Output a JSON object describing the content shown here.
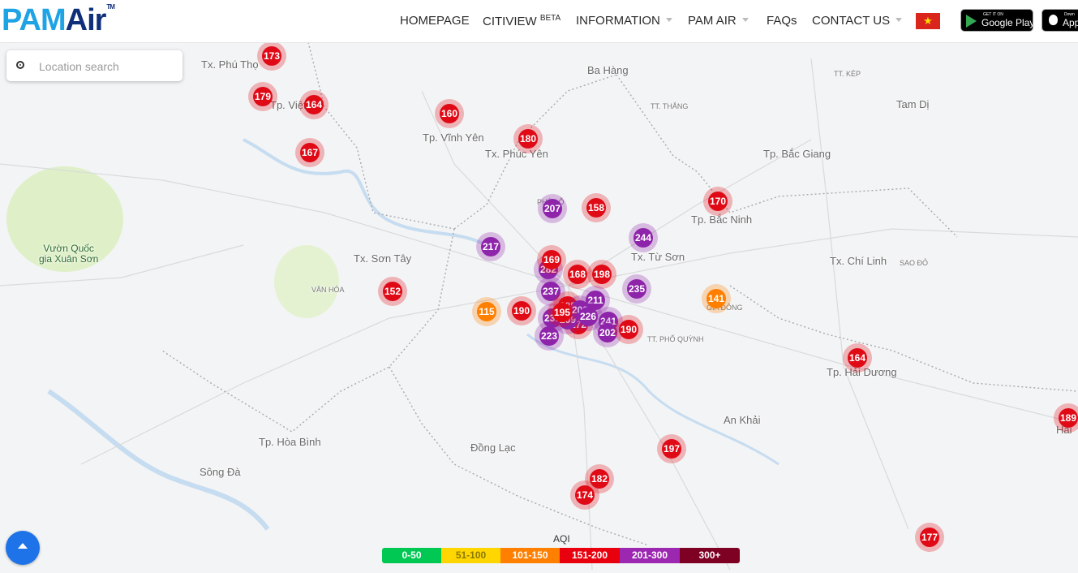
{
  "header": {
    "logo": {
      "pam": "PAM",
      "air": "Air",
      "tm": "TM"
    },
    "nav": [
      {
        "label": "HOMEPAGE",
        "sup": "",
        "dropdown": false
      },
      {
        "label": "CITIVIEW",
        "sup": "BETA",
        "dropdown": false
      },
      {
        "label": "INFORMATION",
        "sup": "",
        "dropdown": true
      },
      {
        "label": "PAM AIR",
        "sup": "",
        "dropdown": true
      },
      {
        "label": "FAQs",
        "sup": "",
        "dropdown": false
      },
      {
        "label": "CONTACT US",
        "sup": "",
        "dropdown": true
      }
    ],
    "flag": {
      "icon": "vietnam-flag-icon",
      "star": "★"
    },
    "google_play": {
      "small": "GET IT ON",
      "big": "Google Play"
    },
    "app_store": {
      "small": "Down",
      "big": "App"
    }
  },
  "search": {
    "placeholder": "Location search",
    "value": ""
  },
  "places": [
    {
      "name": "Tx. Phú Thọ",
      "style": "normal"
    },
    {
      "name": "Tp. Việt",
      "style": "normal"
    },
    {
      "name": "Tp. Vĩnh Yên",
      "style": "normal"
    },
    {
      "name": "Tx. Phúc Yên",
      "style": "normal"
    },
    {
      "name": "Ba Hàng",
      "style": "normal"
    },
    {
      "name": "TT. THẮNG",
      "style": "small"
    },
    {
      "name": "TT. KÉP",
      "style": "small"
    },
    {
      "name": "Tam Dị",
      "style": "normal"
    },
    {
      "name": "Tp. Bắc Giang",
      "style": "normal"
    },
    {
      "name": "PHÙ LỖ",
      "style": "small"
    },
    {
      "name": "Tp. Bắc Ninh",
      "style": "normal"
    },
    {
      "name": "Tx. Từ Sơn",
      "style": "normal"
    },
    {
      "name": "Tx. Sơn Tây",
      "style": "normal"
    },
    {
      "name": "VÂN HÒA",
      "style": "small"
    },
    {
      "name": "Tx. Chí Linh",
      "style": "normal"
    },
    {
      "name": "SAO ĐỎ",
      "style": "small"
    },
    {
      "name": "GIA ĐÔNG",
      "style": "small"
    },
    {
      "name": "TT. PHỐ QUỲNH",
      "style": "small"
    },
    {
      "name": "Tp. Hải Dương",
      "style": "normal"
    },
    {
      "name": "An Khải",
      "style": "normal"
    },
    {
      "name": "Tp. Hòa Bình",
      "style": "normal"
    },
    {
      "name": "Đồng Lạc",
      "style": "normal"
    },
    {
      "name": "Sông Đà",
      "style": "normal"
    },
    {
      "name": "Hải",
      "style": "normal"
    },
    {
      "name": "Vườn Quốc\ngia Xuân Sơn",
      "style": "park"
    }
  ],
  "markers": [
    {
      "value": 173,
      "level": "red"
    },
    {
      "value": 179,
      "level": "red"
    },
    {
      "value": 164,
      "level": "red"
    },
    {
      "value": 167,
      "level": "red"
    },
    {
      "value": 160,
      "level": "red"
    },
    {
      "value": 180,
      "level": "red"
    },
    {
      "value": 207,
      "level": "purple"
    },
    {
      "value": 158,
      "level": "red"
    },
    {
      "value": 170,
      "level": "red"
    },
    {
      "value": 244,
      "level": "purple"
    },
    {
      "value": 217,
      "level": "purple"
    },
    {
      "value": 152,
      "level": "red"
    },
    {
      "value": 282,
      "level": "purple"
    },
    {
      "value": 168,
      "level": "red"
    },
    {
      "value": 198,
      "level": "red"
    },
    {
      "value": 235,
      "level": "purple"
    },
    {
      "value": 141,
      "level": "orange"
    },
    {
      "value": 115,
      "level": "orange"
    },
    {
      "value": 190,
      "level": "red"
    },
    {
      "value": 223,
      "level": "purple"
    },
    {
      "value": 172,
      "level": "red"
    },
    {
      "value": 241,
      "level": "purple"
    },
    {
      "value": 202,
      "level": "purple"
    },
    {
      "value": 190,
      "level": "red"
    },
    {
      "value": 164,
      "level": "red"
    },
    {
      "value": 189,
      "level": "red"
    },
    {
      "value": 197,
      "level": "red"
    },
    {
      "value": 182,
      "level": "red"
    },
    {
      "value": 174,
      "level": "red"
    },
    {
      "value": 177,
      "level": "red"
    },
    {
      "value": 237,
      "level": "purple"
    },
    {
      "value": 231,
      "level": "purple"
    },
    {
      "value": 209,
      "level": "purple"
    },
    {
      "value": 169,
      "level": "red"
    },
    {
      "value": 211,
      "level": "purple"
    },
    {
      "value": 185,
      "level": "red"
    },
    {
      "value": 203,
      "level": "purple"
    },
    {
      "value": 195,
      "level": "red"
    },
    {
      "value": 226,
      "level": "purple"
    }
  ],
  "legend": {
    "title": "AQI",
    "items": [
      {
        "label": "0-50",
        "color": "#00c853",
        "text_color": "#ffffff"
      },
      {
        "label": "51-100",
        "color": "#ffd600",
        "text_color": "#8a7a00"
      },
      {
        "label": "101-150",
        "color": "#ff7f00",
        "text_color": "#ffffff"
      },
      {
        "label": "151-200",
        "color": "#e8000e",
        "text_color": "#ffffff"
      },
      {
        "label": "201-300",
        "color": "#9c27b0",
        "text_color": "#ffffff"
      },
      {
        "label": "300+",
        "color": "#7e0023",
        "text_color": "#ffffff"
      }
    ]
  },
  "colors": {
    "red": "#e00a16",
    "purple": "#8e24aa",
    "orange": "#ff7f00",
    "red_halo": "rgba(224,10,22,0.28)",
    "purple_halo": "rgba(142,36,170,0.28)",
    "orange_halo": "rgba(255,127,0,0.28)",
    "brand_blue": "#1ea3e4",
    "brand_navy": "#0f2f7a"
  },
  "scroll_top_button": {
    "icon": "arrow-up-icon"
  }
}
